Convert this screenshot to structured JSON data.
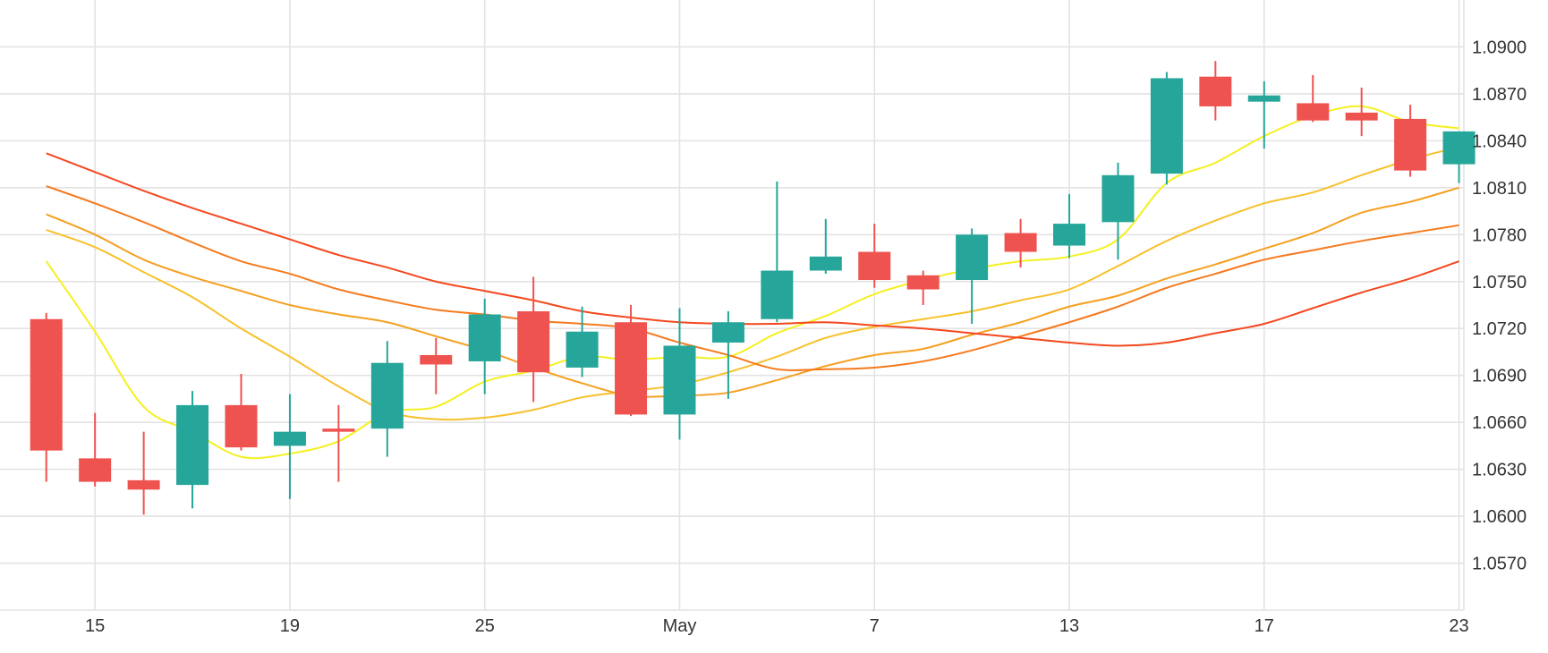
{
  "chart_data": {
    "type": "candlestick",
    "title": "",
    "xlabel": "",
    "ylabel": "",
    "ylim": [
      1.054,
      1.093
    ],
    "y_ticks": [
      1.057,
      1.06,
      1.063,
      1.066,
      1.069,
      1.072,
      1.075,
      1.078,
      1.081,
      1.084,
      1.087,
      1.09
    ],
    "y_tick_labels": [
      "1.0570",
      "1.0600",
      "1.0630",
      "1.0660",
      "1.0690",
      "1.0720",
      "1.0750",
      "1.0780",
      "1.0810",
      "1.0840",
      "1.0870",
      "1.0900"
    ],
    "x_range": [
      -0.95,
      29.1
    ],
    "x_ticks": [
      {
        "index": 1,
        "label": "15"
      },
      {
        "index": 5,
        "label": "19"
      },
      {
        "index": 9,
        "label": "25"
      },
      {
        "index": 13,
        "label": "May"
      },
      {
        "index": 17,
        "label": "7"
      },
      {
        "index": 21,
        "label": "13"
      },
      {
        "index": 25,
        "label": "17"
      },
      {
        "index": 29,
        "label": "23"
      }
    ],
    "up_color": "#26a69a",
    "down_color": "#ef5350",
    "grid": true,
    "candles": [
      {
        "open": 1.0726,
        "high": 1.073,
        "low": 1.0622,
        "close": 1.0642
      },
      {
        "open": 1.0637,
        "high": 1.0666,
        "low": 1.0619,
        "close": 1.0622
      },
      {
        "open": 1.0623,
        "high": 1.0654,
        "low": 1.0601,
        "close": 1.0617
      },
      {
        "open": 1.062,
        "high": 1.068,
        "low": 1.0605,
        "close": 1.0671
      },
      {
        "open": 1.0671,
        "high": 1.0691,
        "low": 1.0642,
        "close": 1.0644
      },
      {
        "open": 1.0645,
        "high": 1.0678,
        "low": 1.0611,
        "close": 1.0654
      },
      {
        "open": 1.0656,
        "high": 1.0671,
        "low": 1.0622,
        "close": 1.0654
      },
      {
        "open": 1.0656,
        "high": 1.0712,
        "low": 1.0638,
        "close": 1.0698
      },
      {
        "open": 1.0703,
        "high": 1.0714,
        "low": 1.0678,
        "close": 1.0697
      },
      {
        "open": 1.0699,
        "high": 1.0739,
        "low": 1.0678,
        "close": 1.0729
      },
      {
        "open": 1.0731,
        "high": 1.0753,
        "low": 1.0673,
        "close": 1.0692
      },
      {
        "open": 1.0695,
        "high": 1.0734,
        "low": 1.0689,
        "close": 1.0718
      },
      {
        "open": 1.0724,
        "high": 1.0735,
        "low": 1.0664,
        "close": 1.0665
      },
      {
        "open": 1.0665,
        "high": 1.0733,
        "low": 1.0649,
        "close": 1.0709
      },
      {
        "open": 1.0711,
        "high": 1.0731,
        "low": 1.0675,
        "close": 1.0724
      },
      {
        "open": 1.0726,
        "high": 1.0814,
        "low": 1.0724,
        "close": 1.0757
      },
      {
        "open": 1.0757,
        "high": 1.079,
        "low": 1.0755,
        "close": 1.0766
      },
      {
        "open": 1.0769,
        "high": 1.0787,
        "low": 1.0746,
        "close": 1.0751
      },
      {
        "open": 1.0754,
        "high": 1.0757,
        "low": 1.0735,
        "close": 1.0745
      },
      {
        "open": 1.0751,
        "high": 1.0784,
        "low": 1.0723,
        "close": 1.078
      },
      {
        "open": 1.0781,
        "high": 1.079,
        "low": 1.0759,
        "close": 1.0769
      },
      {
        "open": 1.0773,
        "high": 1.0806,
        "low": 1.0765,
        "close": 1.0787
      },
      {
        "open": 1.0788,
        "high": 1.0826,
        "low": 1.0764,
        "close": 1.0818
      },
      {
        "open": 1.0819,
        "high": 1.0884,
        "low": 1.0812,
        "close": 1.088
      },
      {
        "open": 1.0881,
        "high": 1.0891,
        "low": 1.0853,
        "close": 1.0862
      },
      {
        "open": 1.0865,
        "high": 1.0878,
        "low": 1.0835,
        "close": 1.0869
      },
      {
        "open": 1.0864,
        "high": 1.0882,
        "low": 1.0852,
        "close": 1.0853
      },
      {
        "open": 1.0858,
        "high": 1.0874,
        "low": 1.0843,
        "close": 1.0853
      },
      {
        "open": 1.0854,
        "high": 1.0863,
        "low": 1.0817,
        "close": 1.0821
      },
      {
        "open": 1.0825,
        "high": 1.0846,
        "low": 1.0813,
        "close": 1.0846
      }
    ],
    "series": [
      {
        "color": "#f5f020",
        "x": [
          0,
          1,
          2,
          3,
          4,
          5,
          6,
          7,
          8,
          9,
          10,
          11,
          12,
          13,
          14,
          15,
          16,
          17,
          18,
          19,
          20,
          21,
          22,
          23,
          24,
          25,
          26,
          27,
          28,
          29
        ],
        "values": [
          1.0763,
          1.0718,
          1.067,
          1.0654,
          1.0638,
          1.064,
          1.0648,
          1.0666,
          1.067,
          1.0686,
          1.0693,
          1.0702,
          1.07,
          1.0702,
          1.0702,
          1.0717,
          1.0728,
          1.0742,
          1.0751,
          1.0758,
          1.0763,
          1.0766,
          1.0777,
          1.0813,
          1.0826,
          1.0843,
          1.0856,
          1.0862,
          1.0852,
          1.0848
        ]
      },
      {
        "color": "#f7c12b",
        "x": [
          0,
          1,
          2,
          3,
          4,
          5,
          6,
          7,
          8,
          9,
          10,
          11,
          12,
          13,
          14,
          15,
          16,
          17,
          18,
          19,
          20,
          21,
          22,
          23,
          24,
          25,
          26,
          27,
          28,
          29
        ],
        "values": [
          1.0783,
          1.0772,
          1.0756,
          1.074,
          1.072,
          1.0702,
          1.0683,
          1.0667,
          1.0662,
          1.0663,
          1.0668,
          1.0676,
          1.068,
          1.0684,
          1.0692,
          1.0702,
          1.0714,
          1.0721,
          1.0726,
          1.0731,
          1.0738,
          1.0745,
          1.076,
          1.0776,
          1.0789,
          1.08,
          1.0807,
          1.0818,
          1.0828,
          1.0836
        ]
      },
      {
        "color": "#f5a020",
        "x": [
          0,
          1,
          2,
          3,
          4,
          5,
          6,
          7,
          8,
          9,
          10,
          11,
          12,
          13,
          14,
          15,
          16,
          17,
          18,
          19,
          20,
          21,
          22,
          23,
          24,
          25,
          26,
          27,
          28,
          29
        ],
        "values": [
          1.0793,
          1.078,
          1.0764,
          1.0753,
          1.0744,
          1.0735,
          1.0729,
          1.0724,
          1.0715,
          1.0706,
          1.0695,
          1.0685,
          1.0677,
          1.0677,
          1.0679,
          1.0687,
          1.0696,
          1.0703,
          1.0707,
          1.0716,
          1.0724,
          1.0734,
          1.0741,
          1.0752,
          1.0761,
          1.0771,
          1.0781,
          1.0794,
          1.0801,
          1.081
        ]
      },
      {
        "color": "#f57a1e",
        "x": [
          0,
          1,
          2,
          3,
          4,
          5,
          6,
          7,
          8,
          9,
          10,
          11,
          12,
          13,
          14,
          15,
          16,
          17,
          18,
          19,
          20,
          21,
          22,
          23,
          24,
          25,
          26,
          27,
          28,
          29
        ],
        "values": [
          1.0811,
          1.08,
          1.0788,
          1.0775,
          1.0763,
          1.0755,
          1.0745,
          1.0738,
          1.0732,
          1.0729,
          1.0725,
          1.0723,
          1.072,
          1.0711,
          1.0703,
          1.0694,
          1.0694,
          1.0695,
          1.0699,
          1.0706,
          1.0715,
          1.0724,
          1.0734,
          1.0746,
          1.0755,
          1.0764,
          1.077,
          1.0776,
          1.0781,
          1.0786
        ]
      },
      {
        "color": "#f4481e",
        "x": [
          0,
          1,
          2,
          3,
          4,
          5,
          6,
          7,
          8,
          9,
          10,
          11,
          12,
          13,
          14,
          15,
          16,
          17,
          18,
          19,
          20,
          21,
          22,
          23,
          24,
          25,
          26,
          27,
          28,
          29
        ],
        "values": [
          1.0832,
          1.082,
          1.0808,
          1.0797,
          1.0787,
          1.0777,
          1.0767,
          1.0759,
          1.075,
          1.0744,
          1.0738,
          1.0731,
          1.0727,
          1.0724,
          1.0723,
          1.0723,
          1.0724,
          1.0722,
          1.072,
          1.0717,
          1.0714,
          1.0711,
          1.0709,
          1.0711,
          1.0717,
          1.0723,
          1.0733,
          1.0743,
          1.0752,
          1.0763
        ]
      }
    ]
  }
}
